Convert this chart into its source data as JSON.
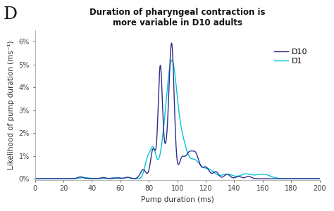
{
  "title_line1": "Duration of pharyngeal contraction is",
  "title_line2": "more variable in D10 adults",
  "xlabel": "Pump duration (ms)",
  "ylabel": "Likelihood of pump duration (ms⁻¹)",
  "panel_label": "D",
  "xlim": [
    0,
    200
  ],
  "ylim": [
    -0.0005,
    0.065
  ],
  "xticks": [
    0,
    20,
    40,
    60,
    80,
    100,
    120,
    140,
    160,
    180,
    200
  ],
  "yticks": [
    0.0,
    0.01,
    0.02,
    0.03,
    0.04,
    0.05,
    0.06
  ],
  "ytick_labels": [
    "0%",
    "1%",
    "2%",
    "3%",
    "4%",
    "5%",
    "6%"
  ],
  "d1_color": "#2e2e8b",
  "d10_color": "#00c5d4",
  "legend_labels": [
    "D1",
    "D10"
  ],
  "background_color": "#ffffff",
  "title_fontsize": 8.5,
  "axis_fontsize": 7.5,
  "tick_fontsize": 7,
  "legend_fontsize": 8
}
